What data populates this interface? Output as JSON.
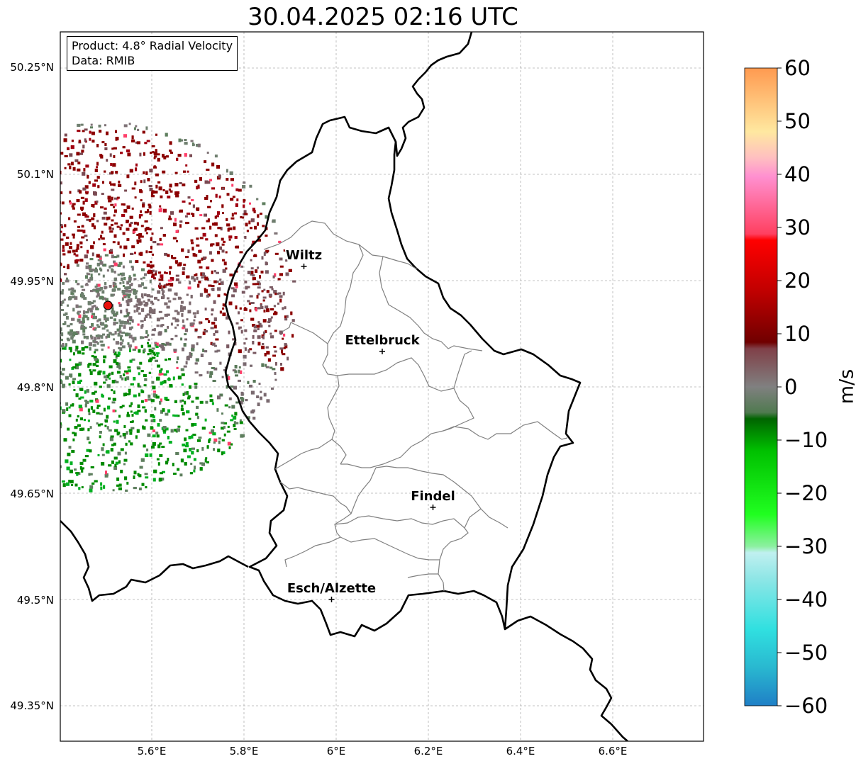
{
  "title": "30.04.2025 02:16 UTC",
  "info": {
    "product": "Product: 4.8° Radial Velocity",
    "data": "Data: RMIB"
  },
  "axes": {
    "lat_ticks": [
      "50.25°N",
      "50.1°N",
      "49.95°N",
      "49.8°N",
      "49.65°N",
      "49.5°N",
      "49.35°N"
    ],
    "lon_ticks": [
      "5.6°E",
      "5.8°E",
      "6°E",
      "6.2°E",
      "6.4°E",
      "6.6°E"
    ]
  },
  "cities": [
    {
      "name": "Wiltz",
      "lon": 5.93,
      "lat": 49.97
    },
    {
      "name": "Ettelbruck",
      "lon": 6.1,
      "lat": 49.85
    },
    {
      "name": "Findel",
      "lon": 6.21,
      "lat": 49.63
    },
    {
      "name": "Esch/Alzette",
      "lon": 5.99,
      "lat": 49.5
    }
  ],
  "radar": {
    "lon": 5.505,
    "lat": 49.915,
    "marker_color": "#e8100c"
  },
  "colorbar": {
    "label": "m/s",
    "min": -60,
    "max": 60,
    "ticks": [
      "60",
      "50",
      "40",
      "30",
      "20",
      "10",
      "0",
      "−10",
      "−20",
      "−30",
      "−40",
      "−50",
      "−60"
    ],
    "tick_values": [
      60,
      50,
      40,
      30,
      20,
      10,
      0,
      -10,
      -20,
      -30,
      -40,
      -50,
      -60
    ]
  },
  "chart_data": {
    "type": "heatmap",
    "title": "30.04.2025 02:16 UTC",
    "lon_range": [
      5.4,
      6.8
    ],
    "lat_range": [
      49.3,
      50.3
    ],
    "value_range": [
      -60,
      60
    ],
    "unit": "m/s",
    "radar_site": {
      "lon": 5.505,
      "lat": 49.915
    },
    "velocity_regions": [
      {
        "sector": "north-east of radar",
        "approx_velocity": 15
      },
      {
        "sector": "east of radar",
        "approx_velocity": 5
      },
      {
        "sector": "near radar",
        "approx_velocity": 0
      },
      {
        "sector": "south of radar",
        "approx_velocity": -10
      }
    ]
  }
}
